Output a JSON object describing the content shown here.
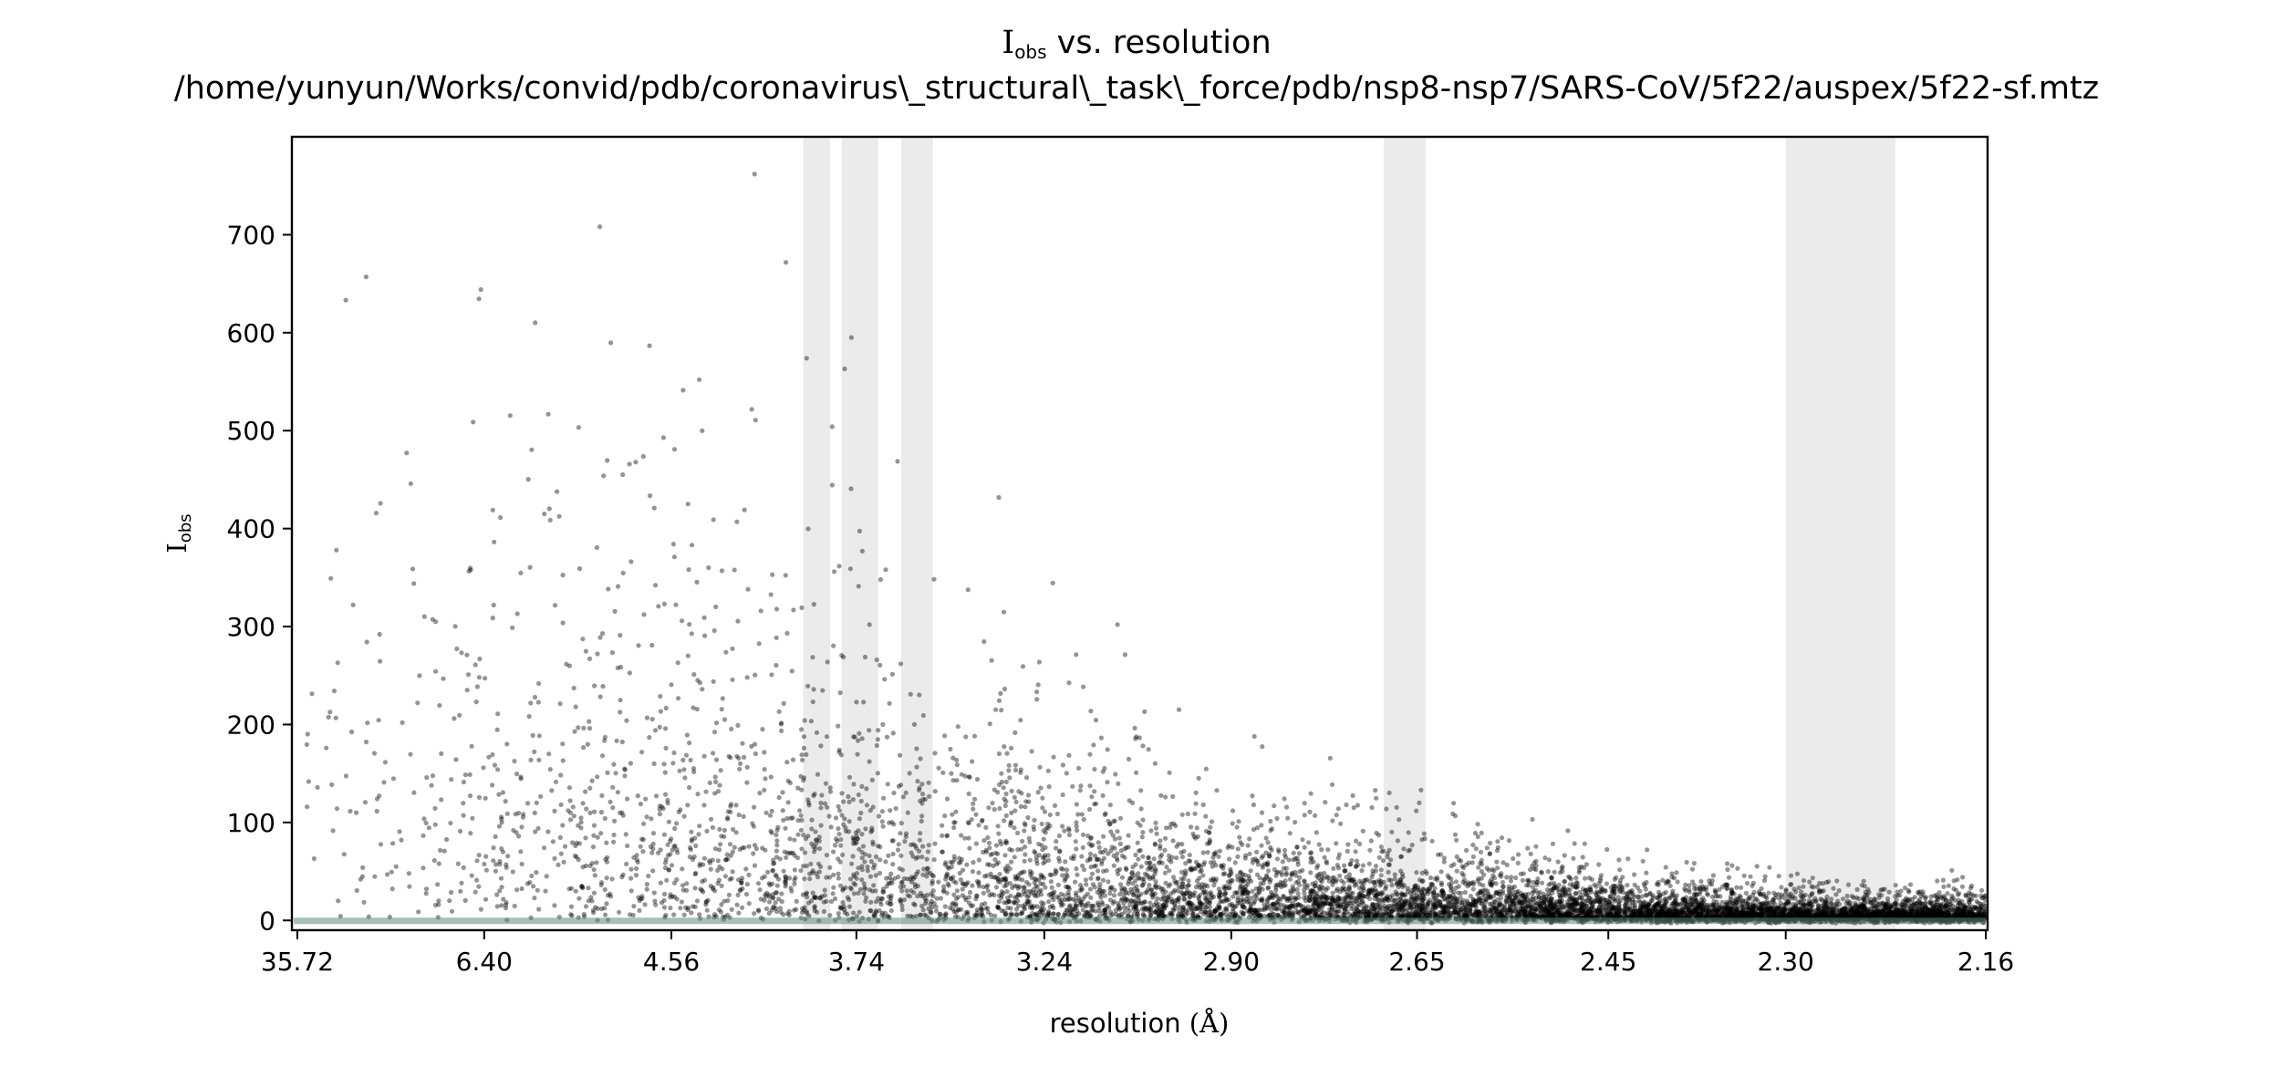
{
  "chart_data": {
    "type": "scatter",
    "title_symbol": "I",
    "title_subscript": "obs",
    "title_rest": " vs. resolution",
    "subtitle": "/home/yunyun/Works/convid/pdb/coronavirus\\_structural\\_task\\_force/pdb/nsp8-nsp7/SARS-CoV/5f22/auspex/5f22-sf.mtz",
    "xlabel_text": "resolution ",
    "xlabel_unit": "(Å)",
    "ylabel_symbol": "I",
    "ylabel_subscript": "obs",
    "x_axis": {
      "scale": "1/d^2",
      "resolution_range": [
        35.72,
        2.16
      ],
      "tick_labels": [
        "35.72",
        "6.40",
        "4.56",
        "3.74",
        "3.24",
        "2.90",
        "2.65",
        "2.45",
        "2.30",
        "2.16"
      ]
    },
    "y_axis": {
      "range": [
        -10,
        800
      ],
      "ticks": [
        0,
        100,
        200,
        300,
        400,
        500,
        600,
        700
      ]
    },
    "highlighted_resolution_bands": [
      [
        3.93,
        3.83
      ],
      [
        3.79,
        3.67
      ],
      [
        3.6,
        3.51
      ],
      [
        2.69,
        2.64
      ],
      [
        2.3,
        2.22
      ]
    ],
    "point_color": "#000000",
    "band_color": "#ebebeb",
    "baseline_color": "#5f8a7a",
    "grid": false,
    "legend": "none"
  }
}
